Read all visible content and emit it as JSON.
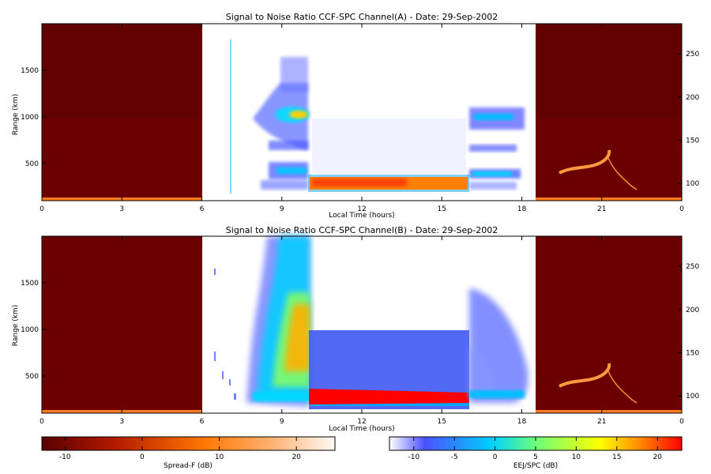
{
  "chart_data": [
    {
      "type": "heatmap",
      "title": "Signal to Noise Ratio CCF-SPC Channel(A) - Date: 29-Sep-2002",
      "xlabel": "Local Time (hours)",
      "ylabel": "Range (km)",
      "xlim": [
        0,
        24
      ],
      "ylim": [
        100,
        2000
      ],
      "x_ticks": [
        "0",
        "3",
        "6",
        "9",
        "12",
        "15",
        "18",
        "21",
        "0"
      ],
      "y_ticks_left": [
        "500",
        "1000",
        "1500"
      ],
      "y_ticks_right": [
        "100",
        "150",
        "200",
        "250"
      ],
      "segments": [
        {
          "from": 0,
          "to": 6,
          "colormap": "Spread-F (dB)"
        },
        {
          "from": 6,
          "to": 18.5,
          "colormap": "EEJ/SPC (dB)"
        },
        {
          "from": 18.5,
          "to": 24,
          "colormap": "Spread-F (dB)"
        }
      ]
    },
    {
      "type": "heatmap",
      "title": "Signal to Noise Ratio CCF-SPC Channel(B) - Date: 29-Sep-2002",
      "xlabel": "Local Time (hours)",
      "ylabel": "Range (km)",
      "xlim": [
        0,
        24
      ],
      "ylim": [
        100,
        2000
      ],
      "x_ticks": [
        "0",
        "3",
        "6",
        "9",
        "12",
        "15",
        "18",
        "21",
        "0"
      ],
      "y_ticks_left": [
        "500",
        "1000",
        "1500"
      ],
      "y_ticks_right": [
        "100",
        "150",
        "200",
        "250"
      ],
      "segments": [
        {
          "from": 0,
          "to": 6,
          "colormap": "Spread-F (dB)"
        },
        {
          "from": 6,
          "to": 18.5,
          "colormap": "EEJ/SPC (dB)"
        },
        {
          "from": 18.5,
          "to": 24,
          "colormap": "Spread-F (dB)"
        }
      ]
    }
  ],
  "colorbars": [
    {
      "label": "Spread-F (dB)",
      "ticks": [
        "-10",
        "0",
        "10",
        "20"
      ],
      "range": [
        -13,
        25
      ],
      "colors": [
        "#5a0000",
        "#b31a00",
        "#ff7700",
        "#ffb070",
        "#fffaf4"
      ]
    },
    {
      "label": "EEJ/SPC (dB)",
      "ticks": [
        "-10",
        "-5",
        "0",
        "5",
        "10",
        "15",
        "20"
      ],
      "range": [
        -13,
        23
      ],
      "colors": [
        "#ffffff",
        "#4b50ff",
        "#00d0ff",
        "#6cff7a",
        "#ffff00",
        "#ff9000",
        "#ff0000"
      ]
    }
  ],
  "colors": {
    "background_dark": "#6a0000",
    "eej_red": "#ff0000"
  }
}
